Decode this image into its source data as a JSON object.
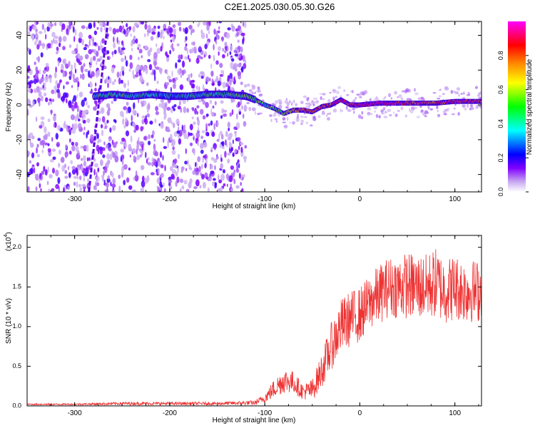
{
  "page_title": "C2E1.2025.030.05.30.G26",
  "chart_data": [
    {
      "type": "heatmap",
      "title": "C2E1.2025.030.05.30.G26",
      "xlabel": "Height of straight line (km)",
      "ylabel": "Frequency (Hz)",
      "xlim": [
        -350,
        128
      ],
      "ylim": [
        -50,
        48
      ],
      "xticks": [
        -300,
        -200,
        -100,
        0,
        100
      ],
      "yticks": [
        -40,
        -20,
        0,
        20,
        40
      ],
      "colorbar": {
        "label": "Normalized spectral amplitude",
        "range": [
          0,
          1
        ],
        "ticks": [
          "0.0",
          "0.2",
          "0.4",
          "0.6",
          "0.8"
        ],
        "colormap": [
          "#ffffff",
          "#9370db",
          "#4b00ff",
          "#0000ff",
          "#00ffff",
          "#00ff00",
          "#ffff00",
          "#ff8000",
          "#ff0000",
          "#ff00ff"
        ]
      },
      "signal_track": {
        "x": [
          -280,
          -260,
          -240,
          -220,
          -200,
          -180,
          -160,
          -140,
          -120,
          -110,
          -100,
          -90,
          -80,
          -70,
          -60,
          -50,
          -40,
          -30,
          -20,
          -10,
          0,
          20,
          40,
          60,
          80,
          100,
          128
        ],
        "freq": [
          5,
          6,
          5,
          6,
          5,
          5,
          6,
          6,
          5,
          3,
          0,
          -2,
          -5,
          -3,
          -3,
          -4,
          -1,
          0,
          3,
          0,
          0,
          1,
          1,
          1,
          1,
          2,
          2
        ],
        "amplitude": [
          0.45,
          0.45,
          0.4,
          0.4,
          0.35,
          0.4,
          0.4,
          0.45,
          0.5,
          0.5,
          0.5,
          0.55,
          0.6,
          0.7,
          0.8,
          0.75,
          0.8,
          0.85,
          0.9,
          0.9,
          0.95,
          0.95,
          0.9,
          0.85,
          0.85,
          0.85,
          0.85
        ]
      },
      "noise_region_x": [
        -350,
        -120
      ],
      "spurious_line": {
        "x1": -265,
        "y1": 48,
        "x2": -285,
        "y2": -50
      }
    },
    {
      "type": "line",
      "xlabel": "Height of straight line (km)",
      "ylabel": "SNR (10 * v/v)",
      "multiplier_label": "(x10",
      "multiplier_exp": "4",
      "multiplier_close": ")",
      "xlim": [
        -350,
        128
      ],
      "ylim": [
        0,
        2.15
      ],
      "xticks": [
        -300,
        -200,
        -100,
        0,
        100
      ],
      "yticks": [
        "0.0",
        "0.5",
        "1.0",
        "1.5",
        "2.0"
      ],
      "line_color": "#ee3333",
      "series": [
        {
          "name": "SNR",
          "x": [
            -350,
            -300,
            -250,
            -200,
            -150,
            -110,
            -100,
            -90,
            -80,
            -70,
            -60,
            -50,
            -40,
            -30,
            -20,
            -10,
            0,
            10,
            20,
            30,
            40,
            50,
            60,
            70,
            80,
            90,
            100,
            110,
            120,
            128
          ],
          "y": [
            0.02,
            0.02,
            0.03,
            0.03,
            0.03,
            0.04,
            0.1,
            0.22,
            0.32,
            0.3,
            0.18,
            0.2,
            0.45,
            0.75,
            1.0,
            1.1,
            1.15,
            1.3,
            1.4,
            1.5,
            1.5,
            1.52,
            1.5,
            1.5,
            1.55,
            1.45,
            1.5,
            1.45,
            1.45,
            1.45
          ],
          "spread": [
            0.01,
            0.01,
            0.02,
            0.02,
            0.02,
            0.03,
            0.06,
            0.12,
            0.16,
            0.14,
            0.1,
            0.14,
            0.22,
            0.3,
            0.35,
            0.35,
            0.35,
            0.35,
            0.38,
            0.38,
            0.4,
            0.42,
            0.42,
            0.42,
            0.45,
            0.42,
            0.42,
            0.4,
            0.4,
            0.4
          ]
        }
      ]
    }
  ]
}
